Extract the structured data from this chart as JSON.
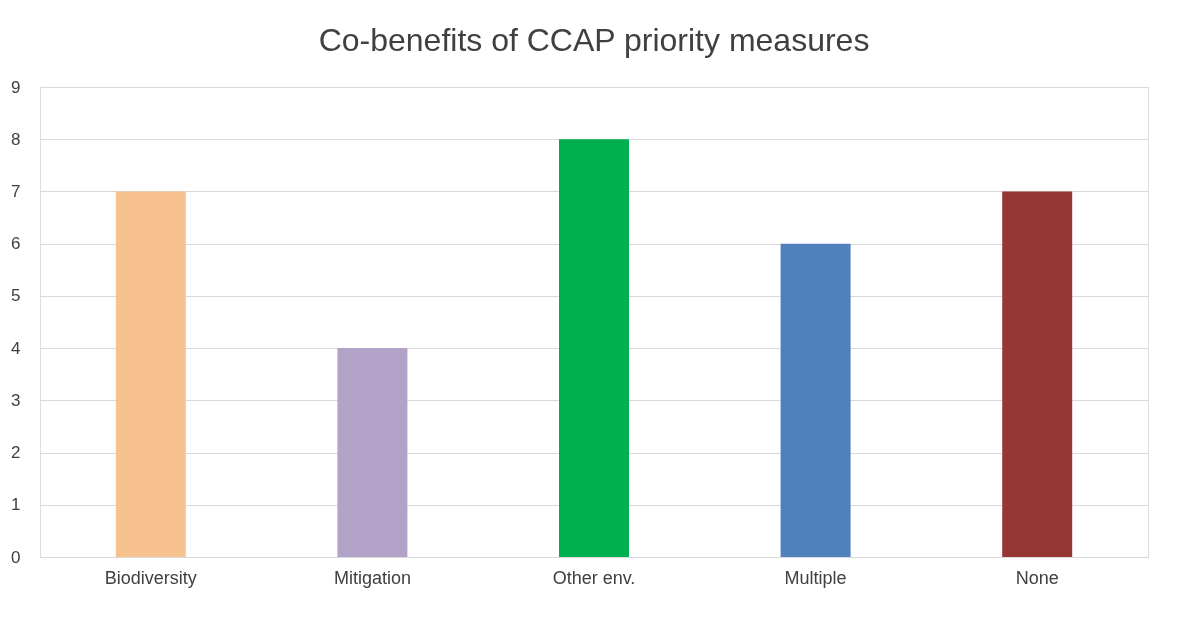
{
  "chart_data": {
    "type": "bar",
    "title": "Co-benefits of CCAP priority measures",
    "categories": [
      "Biodiversity",
      "Mitigation",
      "Other env.",
      "Multiple",
      "None"
    ],
    "values": [
      7,
      4,
      8,
      6,
      7
    ],
    "colors": [
      "#f8c290",
      "#b2a2c7",
      "#00b050",
      "#4f81bd",
      "#953735"
    ],
    "ylim": [
      0,
      9
    ],
    "yticks": [
      0,
      1,
      2,
      3,
      4,
      5,
      6,
      7,
      8,
      9
    ],
    "grid": "y"
  }
}
